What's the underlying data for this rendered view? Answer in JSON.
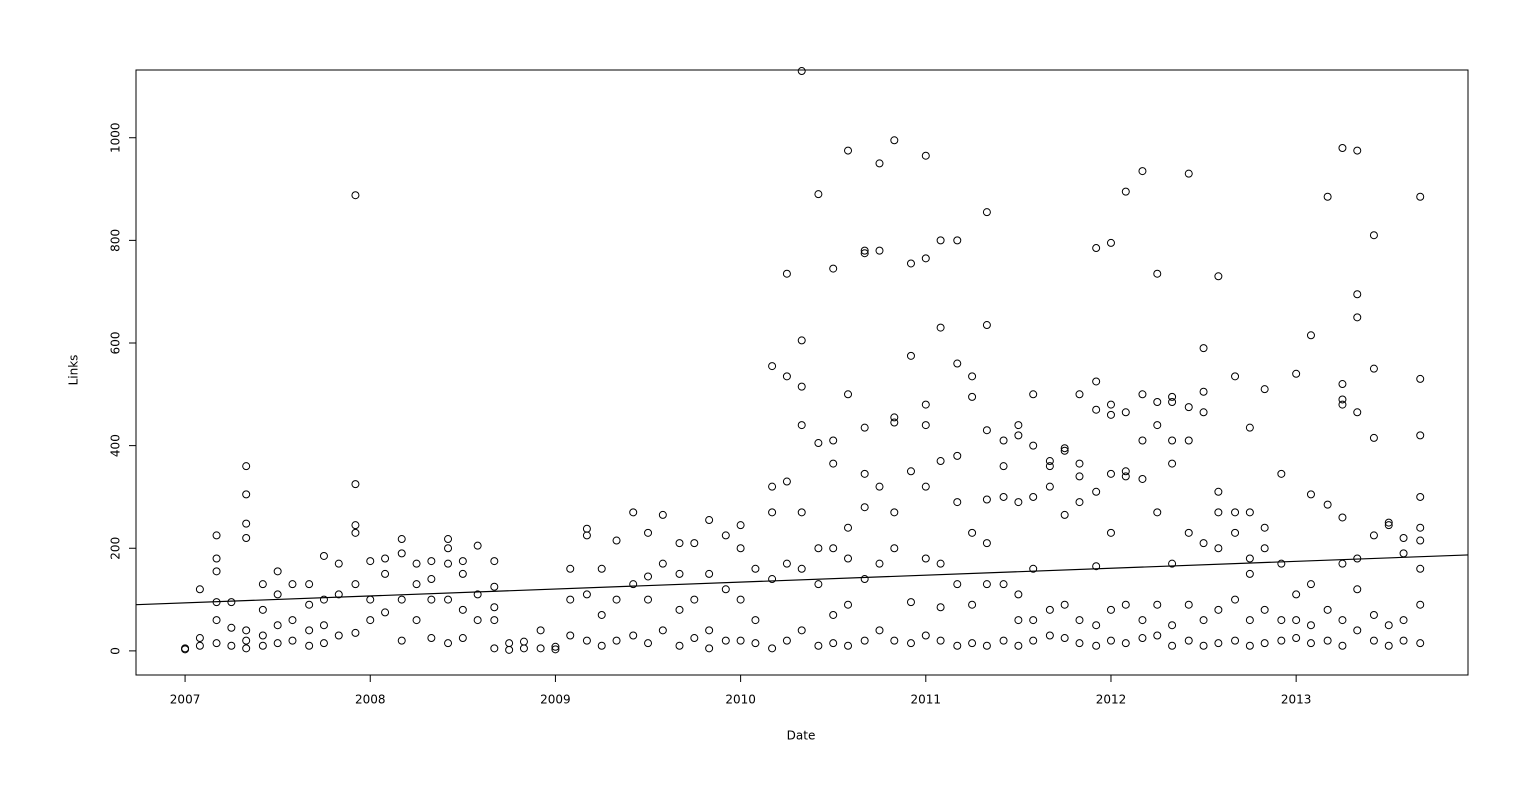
{
  "chart_data": {
    "type": "scatter",
    "xlabel": "Date",
    "ylabel": "Links",
    "color": "#000000",
    "xlim": [
      2006.735,
      2013.928
    ],
    "xticks": [
      2007,
      2008,
      2009,
      2010,
      2011,
      2012,
      2013
    ],
    "ylim": [
      -47,
      1132
    ],
    "yticks": [
      0,
      200,
      400,
      600,
      800,
      1000
    ],
    "x": [
      2007.0,
      2007.0,
      2007.08,
      2007.08,
      2007.08,
      2007.17,
      2007.17,
      2007.17,
      2007.17,
      2007.17,
      2007.17,
      2007.25,
      2007.25,
      2007.25,
      2007.33,
      2007.33,
      2007.33,
      2007.33,
      2007.33,
      2007.33,
      2007.33,
      2007.42,
      2007.42,
      2007.42,
      2007.42,
      2007.5,
      2007.5,
      2007.5,
      2007.5,
      2007.58,
      2007.58,
      2007.58,
      2007.67,
      2007.67,
      2007.67,
      2007.67,
      2007.75,
      2007.75,
      2007.75,
      2007.75,
      2007.83,
      2007.83,
      2007.83,
      2007.92,
      2007.92,
      2007.92,
      2007.92,
      2007.92,
      2007.92,
      2008.0,
      2008.0,
      2008.0,
      2008.08,
      2008.08,
      2008.08,
      2008.17,
      2008.17,
      2008.17,
      2008.17,
      2008.25,
      2008.25,
      2008.25,
      2008.33,
      2008.33,
      2008.33,
      2008.33,
      2008.42,
      2008.42,
      2008.42,
      2008.42,
      2008.42,
      2008.5,
      2008.5,
      2008.5,
      2008.5,
      2008.58,
      2008.58,
      2008.58,
      2008.67,
      2008.67,
      2008.67,
      2008.67,
      2008.67,
      2008.75,
      2008.75,
      2008.83,
      2008.83,
      2008.92,
      2008.92,
      2009.0,
      2009.0,
      2009.08,
      2009.08,
      2009.08,
      2009.17,
      2009.17,
      2009.17,
      2009.17,
      2009.25,
      2009.25,
      2009.25,
      2009.33,
      2009.33,
      2009.33,
      2009.42,
      2009.42,
      2009.42,
      2009.5,
      2009.5,
      2009.5,
      2009.5,
      2009.58,
      2009.58,
      2009.58,
      2009.67,
      2009.67,
      2009.67,
      2009.67,
      2009.75,
      2009.75,
      2009.75,
      2009.83,
      2009.83,
      2009.83,
      2009.83,
      2009.92,
      2009.92,
      2009.92,
      2010.0,
      2010.0,
      2010.0,
      2010.0,
      2010.08,
      2010.08,
      2010.08,
      2010.17,
      2010.17,
      2010.17,
      2010.17,
      2010.17,
      2010.25,
      2010.25,
      2010.25,
      2010.25,
      2010.25,
      2010.33,
      2010.33,
      2010.33,
      2010.33,
      2010.33,
      2010.33,
      2010.33,
      2010.42,
      2010.42,
      2010.42,
      2010.42,
      2010.42,
      2010.5,
      2010.5,
      2010.5,
      2010.5,
      2010.5,
      2010.5,
      2010.58,
      2010.58,
      2010.58,
      2010.58,
      2010.58,
      2010.58,
      2010.67,
      2010.67,
      2010.67,
      2010.67,
      2010.67,
      2010.67,
      2010.67,
      2010.75,
      2010.75,
      2010.75,
      2010.75,
      2010.75,
      2010.83,
      2010.83,
      2010.83,
      2010.83,
      2010.83,
      2010.83,
      2010.92,
      2010.92,
      2010.92,
      2010.92,
      2010.92,
      2011.0,
      2011.0,
      2011.0,
      2011.0,
      2011.0,
      2011.0,
      2011.0,
      2011.08,
      2011.08,
      2011.08,
      2011.08,
      2011.08,
      2011.08,
      2011.17,
      2011.17,
      2011.17,
      2011.17,
      2011.17,
      2011.17,
      2011.25,
      2011.25,
      2011.25,
      2011.25,
      2011.25,
      2011.33,
      2011.33,
      2011.33,
      2011.33,
      2011.33,
      2011.33,
      2011.33,
      2011.42,
      2011.42,
      2011.42,
      2011.42,
      2011.42,
      2011.5,
      2011.5,
      2011.5,
      2011.5,
      2011.5,
      2011.5,
      2011.58,
      2011.58,
      2011.58,
      2011.58,
      2011.58,
      2011.58,
      2011.67,
      2011.67,
      2011.67,
      2011.67,
      2011.67,
      2011.75,
      2011.75,
      2011.75,
      2011.75,
      2011.75,
      2011.83,
      2011.83,
      2011.83,
      2011.83,
      2011.83,
      2011.83,
      2011.92,
      2011.92,
      2011.92,
      2011.92,
      2011.92,
      2011.92,
      2011.92,
      2012.0,
      2012.0,
      2012.0,
      2012.0,
      2012.0,
      2012.0,
      2012.0,
      2012.08,
      2012.08,
      2012.08,
      2012.08,
      2012.08,
      2012.08,
      2012.17,
      2012.17,
      2012.17,
      2012.17,
      2012.17,
      2012.17,
      2012.25,
      2012.25,
      2012.25,
      2012.25,
      2012.25,
      2012.25,
      2012.33,
      2012.33,
      2012.33,
      2012.33,
      2012.33,
      2012.33,
      2012.33,
      2012.42,
      2012.42,
      2012.42,
      2012.42,
      2012.42,
      2012.42,
      2012.5,
      2012.5,
      2012.5,
      2012.5,
      2012.5,
      2012.5,
      2012.58,
      2012.58,
      2012.58,
      2012.58,
      2012.58,
      2012.58,
      2012.67,
      2012.67,
      2012.67,
      2012.67,
      2012.67,
      2012.75,
      2012.75,
      2012.75,
      2012.75,
      2012.75,
      2012.75,
      2012.83,
      2012.83,
      2012.83,
      2012.83,
      2012.83,
      2012.92,
      2012.92,
      2012.92,
      2012.92,
      2013.0,
      2013.0,
      2013.0,
      2013.0,
      2013.08,
      2013.08,
      2013.08,
      2013.08,
      2013.08,
      2013.17,
      2013.17,
      2013.17,
      2013.17,
      2013.25,
      2013.25,
      2013.25,
      2013.25,
      2013.25,
      2013.25,
      2013.25,
      2013.25,
      2013.33,
      2013.33,
      2013.33,
      2013.33,
      2013.33,
      2013.33,
      2013.33,
      2013.42,
      2013.42,
      2013.42,
      2013.42,
      2013.42,
      2013.42,
      2013.5,
      2013.5,
      2013.5,
      2013.5,
      2013.58,
      2013.58,
      2013.58,
      2013.58,
      2013.67,
      2013.67,
      2013.67,
      2013.67,
      2013.67,
      2013.67,
      2013.67,
      2013.67,
      2013.67
    ],
    "values": [
      3,
      5,
      10,
      25,
      120,
      15,
      60,
      95,
      155,
      180,
      225,
      10,
      45,
      95,
      5,
      20,
      40,
      220,
      248,
      305,
      360,
      10,
      30,
      80,
      130,
      15,
      50,
      110,
      155,
      20,
      60,
      130,
      10,
      40,
      90,
      130,
      15,
      50,
      100,
      185,
      30,
      110,
      170,
      35,
      130,
      230,
      245,
      325,
      888,
      60,
      100,
      175,
      75,
      150,
      180,
      20,
      100,
      190,
      218,
      60,
      130,
      170,
      25,
      100,
      140,
      175,
      15,
      100,
      170,
      200,
      218,
      25,
      80,
      150,
      175,
      60,
      110,
      205,
      5,
      60,
      85,
      125,
      175,
      2,
      15,
      5,
      18,
      5,
      40,
      3,
      8,
      30,
      100,
      160,
      20,
      110,
      225,
      238,
      10,
      70,
      160,
      20,
      100,
      215,
      30,
      130,
      270,
      15,
      100,
      145,
      230,
      40,
      170,
      265,
      10,
      80,
      150,
      210,
      25,
      100,
      210,
      5,
      40,
      150,
      255,
      20,
      120,
      225,
      20,
      100,
      200,
      245,
      15,
      60,
      160,
      5,
      140,
      270,
      320,
      555,
      20,
      170,
      330,
      535,
      735,
      40,
      160,
      270,
      440,
      515,
      605,
      1130,
      10,
      130,
      200,
      405,
      890,
      15,
      70,
      200,
      365,
      410,
      745,
      10,
      90,
      180,
      240,
      500,
      975,
      20,
      140,
      280,
      345,
      435,
      775,
      780,
      40,
      170,
      320,
      780,
      950,
      20,
      200,
      270,
      445,
      455,
      995,
      15,
      95,
      350,
      575,
      755,
      30,
      180,
      320,
      440,
      480,
      765,
      965,
      20,
      85,
      170,
      370,
      630,
      800,
      10,
      130,
      290,
      380,
      560,
      800,
      15,
      90,
      230,
      495,
      535,
      10,
      130,
      210,
      295,
      430,
      635,
      855,
      20,
      130,
      300,
      360,
      410,
      10,
      60,
      110,
      290,
      420,
      440,
      20,
      60,
      160,
      300,
      400,
      500,
      30,
      80,
      320,
      360,
      370,
      25,
      90,
      265,
      390,
      395,
      15,
      60,
      290,
      340,
      365,
      500,
      10,
      50,
      165,
      310,
      470,
      525,
      785,
      20,
      80,
      230,
      345,
      460,
      480,
      795,
      15,
      90,
      340,
      350,
      465,
      895,
      25,
      60,
      335,
      410,
      500,
      935,
      30,
      90,
      270,
      440,
      485,
      735,
      10,
      50,
      170,
      365,
      410,
      485,
      495,
      20,
      90,
      230,
      410,
      475,
      930,
      10,
      60,
      210,
      465,
      505,
      590,
      15,
      80,
      200,
      270,
      310,
      730,
      20,
      100,
      230,
      270,
      535,
      10,
      60,
      150,
      180,
      270,
      435,
      15,
      80,
      200,
      240,
      510,
      20,
      60,
      170,
      345,
      25,
      60,
      110,
      540,
      15,
      50,
      130,
      305,
      615,
      20,
      80,
      285,
      885,
      10,
      60,
      170,
      260,
      480,
      490,
      520,
      980,
      40,
      120,
      180,
      465,
      650,
      695,
      975,
      20,
      70,
      225,
      415,
      550,
      810,
      10,
      50,
      245,
      250,
      20,
      60,
      190,
      220,
      15,
      90,
      160,
      215,
      240,
      300,
      420,
      530,
      885
    ],
    "trend": {
      "x": [
        2006.735,
        2013.928
      ],
      "values": [
        90,
        187
      ]
    }
  }
}
